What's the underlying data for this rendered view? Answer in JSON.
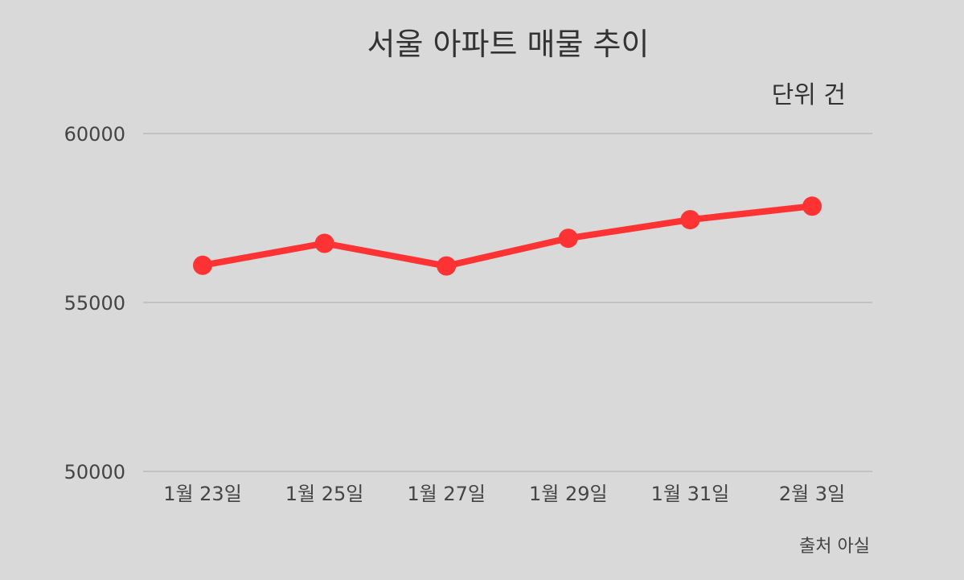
{
  "chart_data": {
    "type": "line",
    "title": "서울 아파트 매물 추이",
    "unit_label": "단위 건",
    "source": "출처 아실",
    "categories": [
      "1월 23일",
      "1월 25일",
      "1월 27일",
      "1월 29일",
      "1월 31일",
      "2월 3일"
    ],
    "series": [
      {
        "values": [
          56100,
          56750,
          56080,
          56900,
          57450,
          57850
        ]
      }
    ],
    "y_ticks": [
      "60000",
      "55000",
      "50000"
    ],
    "ylim": [
      50000,
      60000
    ],
    "grid": true,
    "legend": "none",
    "colors": {
      "line": "#ff3333",
      "grid": "#b5b5b5",
      "background": "#d9d9d9"
    }
  }
}
